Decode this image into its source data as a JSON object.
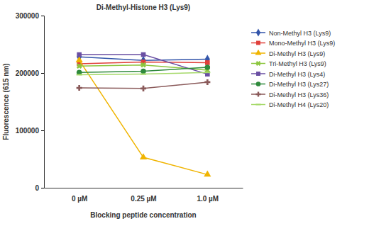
{
  "chart_data": {
    "type": "line",
    "title": "Di-Methyl-Histone H3 (Lys9)",
    "x_label": "Blocking peptide concentration",
    "y_label": "Fluorescence (615 nm)",
    "categories": [
      "0 µM",
      "0.25 µM",
      "1.0 µM"
    ],
    "ylim": [
      0,
      300000
    ],
    "yticks": [
      0,
      100000,
      200000,
      300000
    ],
    "grid": false,
    "legend": "right",
    "series": [
      {
        "name": "Non-Methyl H3 (Lys9)",
        "color": "#3355aa",
        "marker": "diamond",
        "values": [
          228000,
          222000,
          224000
        ]
      },
      {
        "name": "Mono-Methyl H3 (Lys9)",
        "color": "#e0403a",
        "marker": "square",
        "values": [
          216000,
          219000,
          218000
        ]
      },
      {
        "name": "Di-Methyl H3 (Lys9)",
        "color": "#f0b400",
        "marker": "triangle",
        "values": [
          222000,
          53000,
          23000
        ]
      },
      {
        "name": "Tri-Methyl H3 (Lys9)",
        "color": "#8cc63e",
        "marker": "x",
        "values": [
          212000,
          214000,
          205000
        ]
      },
      {
        "name": "Di-Methyl H3 (Lys4)",
        "color": "#6a4fa3",
        "marker": "square",
        "values": [
          232000,
          232000,
          198000
        ]
      },
      {
        "name": "Di-Methyl H3 (Lys27)",
        "color": "#2f8a3c",
        "marker": "circle",
        "values": [
          201000,
          203000,
          210000
        ]
      },
      {
        "name": "Di-Methyl H3 (Lys36)",
        "color": "#8a5a5a",
        "marker": "plus",
        "values": [
          174000,
          173000,
          184000
        ]
      },
      {
        "name": "Di-Methyl H4 (Lys20)",
        "color": "#a6d96a",
        "marker": "dash",
        "values": [
          197000,
          198000,
          201000
        ]
      }
    ]
  }
}
